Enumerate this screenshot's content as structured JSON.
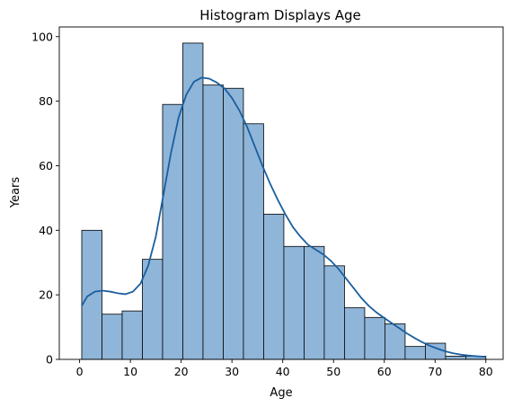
{
  "chart_data": {
    "type": "bar",
    "title": "Histogram Displays Age",
    "xlabel": "Age",
    "ylabel": "Years",
    "xlim": [
      -4.0,
      83.4
    ],
    "ylim": [
      0,
      103
    ],
    "xticks": [
      0,
      10,
      20,
      30,
      40,
      50,
      60,
      70,
      80
    ],
    "yticks": [
      0,
      20,
      40,
      60,
      80,
      100
    ],
    "grid": false,
    "legend": "none",
    "bar_color": "#8fb5d9",
    "bar_edge_color": "#000000",
    "line_color": "#1a5f9e",
    "bins": [
      {
        "start": 0.42,
        "end": 4.4,
        "count": 40
      },
      {
        "start": 4.4,
        "end": 8.38,
        "count": 14
      },
      {
        "start": 8.38,
        "end": 12.36,
        "count": 15
      },
      {
        "start": 12.36,
        "end": 16.34,
        "count": 31
      },
      {
        "start": 16.34,
        "end": 20.32,
        "count": 79
      },
      {
        "start": 20.32,
        "end": 24.3,
        "count": 98
      },
      {
        "start": 24.3,
        "end": 28.28,
        "count": 85
      },
      {
        "start": 28.28,
        "end": 32.26,
        "count": 84
      },
      {
        "start": 32.26,
        "end": 36.24,
        "count": 73
      },
      {
        "start": 36.24,
        "end": 40.22,
        "count": 45
      },
      {
        "start": 40.22,
        "end": 44.2,
        "count": 35
      },
      {
        "start": 44.2,
        "end": 48.18,
        "count": 35
      },
      {
        "start": 48.18,
        "end": 52.16,
        "count": 29
      },
      {
        "start": 52.16,
        "end": 56.14,
        "count": 16
      },
      {
        "start": 56.14,
        "end": 60.12,
        "count": 13
      },
      {
        "start": 60.12,
        "end": 64.1,
        "count": 11
      },
      {
        "start": 64.1,
        "end": 68.08,
        "count": 4
      },
      {
        "start": 68.08,
        "end": 72.06,
        "count": 5
      },
      {
        "start": 72.06,
        "end": 76.04,
        "count": 1
      },
      {
        "start": 76.04,
        "end": 80.0,
        "count": 1
      }
    ],
    "kde": {
      "x": [
        0.4,
        1.5,
        3,
        4.5,
        6,
        7.5,
        9,
        10.5,
        12,
        13.5,
        15,
        16.5,
        18,
        19.5,
        21,
        22.5,
        24,
        25.5,
        27,
        28.5,
        30,
        31.5,
        33,
        34.5,
        36,
        37.5,
        39,
        40.5,
        42,
        43.5,
        45,
        46.5,
        48,
        49.5,
        51,
        52.5,
        54,
        55.5,
        57,
        58.5,
        60,
        61.5,
        63,
        64.5,
        66,
        67.5,
        69,
        70.5,
        72,
        73.5,
        75,
        76.5,
        78,
        80
      ],
      "y": [
        16.5,
        19.5,
        21,
        21.3,
        21,
        20.5,
        20.2,
        21,
        23.5,
        29,
        38,
        51,
        64,
        75,
        82,
        86,
        87.3,
        87,
        85.8,
        84,
        81,
        77,
        72,
        66,
        60,
        54.5,
        49.5,
        45,
        41,
        38,
        35.5,
        34,
        32.5,
        30.5,
        28,
        25,
        22,
        19,
        16.5,
        14.5,
        12.8,
        11.2,
        9.6,
        8,
        6.6,
        5.3,
        4.2,
        3.3,
        2.5,
        1.9,
        1.5,
        1.2,
        1.0,
        0.8
      ]
    }
  }
}
